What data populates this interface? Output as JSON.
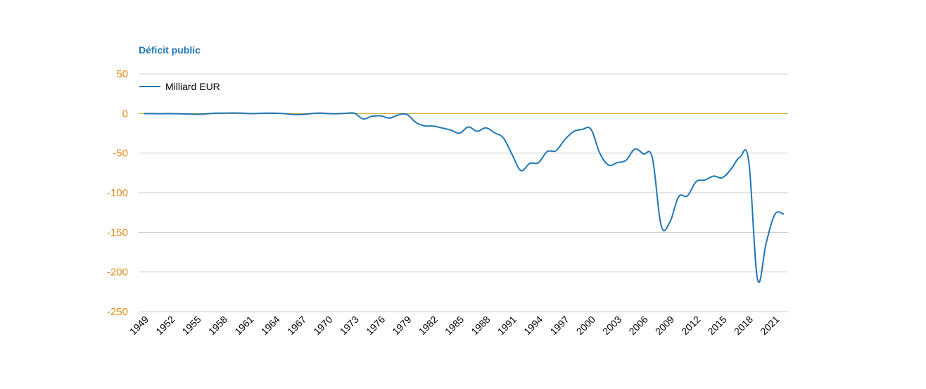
{
  "colors": {
    "title": "#1f77b4",
    "series": "#1f77b4",
    "ytick": "#e08c1a",
    "grid": "#cccccc",
    "zero_line": "#c8a415"
  },
  "chart_data": {
    "type": "line",
    "title": "Déficit public",
    "xlabel": "",
    "ylabel": "",
    "ylim": [
      -250,
      50
    ],
    "yticks": [
      "50",
      "0",
      "-50",
      "-100",
      "-150",
      "-200",
      "-250"
    ],
    "xtick_labels": [
      "1949",
      "1952",
      "1955",
      "1958",
      "1961",
      "1964",
      "1967",
      "1970",
      "1973",
      "1976",
      "1979",
      "1982",
      "1985",
      "1988",
      "1991",
      "1994",
      "1997",
      "2000",
      "2003",
      "2006",
      "2009",
      "2012",
      "2015",
      "2018",
      "2021"
    ],
    "grid": true,
    "legend": {
      "position": "top-left",
      "entries": [
        "Milliard EUR"
      ]
    },
    "x": [
      1949,
      1950,
      1951,
      1952,
      1953,
      1954,
      1955,
      1956,
      1957,
      1958,
      1959,
      1960,
      1961,
      1962,
      1963,
      1964,
      1965,
      1966,
      1967,
      1968,
      1969,
      1970,
      1971,
      1972,
      1973,
      1974,
      1975,
      1976,
      1977,
      1978,
      1979,
      1980,
      1981,
      1982,
      1983,
      1984,
      1985,
      1986,
      1987,
      1988,
      1989,
      1990,
      1991,
      1992,
      1993,
      1994,
      1995,
      1996,
      1997,
      1998,
      1999,
      2000,
      2001,
      2002,
      2003,
      2004,
      2005,
      2006,
      2007,
      2008,
      2009,
      2010,
      2011,
      2012,
      2013,
      2014,
      2015,
      2016,
      2017,
      2018,
      2019,
      2020,
      2021,
      2022
    ],
    "series": [
      {
        "name": "Milliard EUR",
        "values": [
          -0.1,
          -0.2,
          -0.3,
          -0.1,
          -0.4,
          -0.6,
          -1.0,
          -0.6,
          0.3,
          0.4,
          0.6,
          0.5,
          -0.1,
          0.1,
          0.4,
          0.3,
          -0.2,
          -1.3,
          -1.2,
          -0.3,
          0.5,
          -0.2,
          -0.3,
          0.2,
          0.2,
          -6.9,
          -3.5,
          -3.0,
          -5.8,
          -1.8,
          -1.3,
          -11.3,
          -15.6,
          -15.9,
          -18.3,
          -21.0,
          -24.8,
          -17.0,
          -22.5,
          -18.1,
          -24.4,
          -31.0,
          -52.0,
          -72.0,
          -63.0,
          -62.0,
          -48.0,
          -47.0,
          -33.0,
          -23.0,
          -20.0,
          -20.0,
          -50.0,
          -65.0,
          -62.0,
          -59.0,
          -45.0,
          -51.0,
          -56.0,
          -141.0,
          -137.0,
          -105.0,
          -104.0,
          -86.0,
          -84.0,
          -79.0,
          -81.0,
          -70.0,
          -55.0,
          -60.0,
          -209.0,
          -163.0,
          -127.0,
          -127.0
        ]
      }
    ]
  }
}
